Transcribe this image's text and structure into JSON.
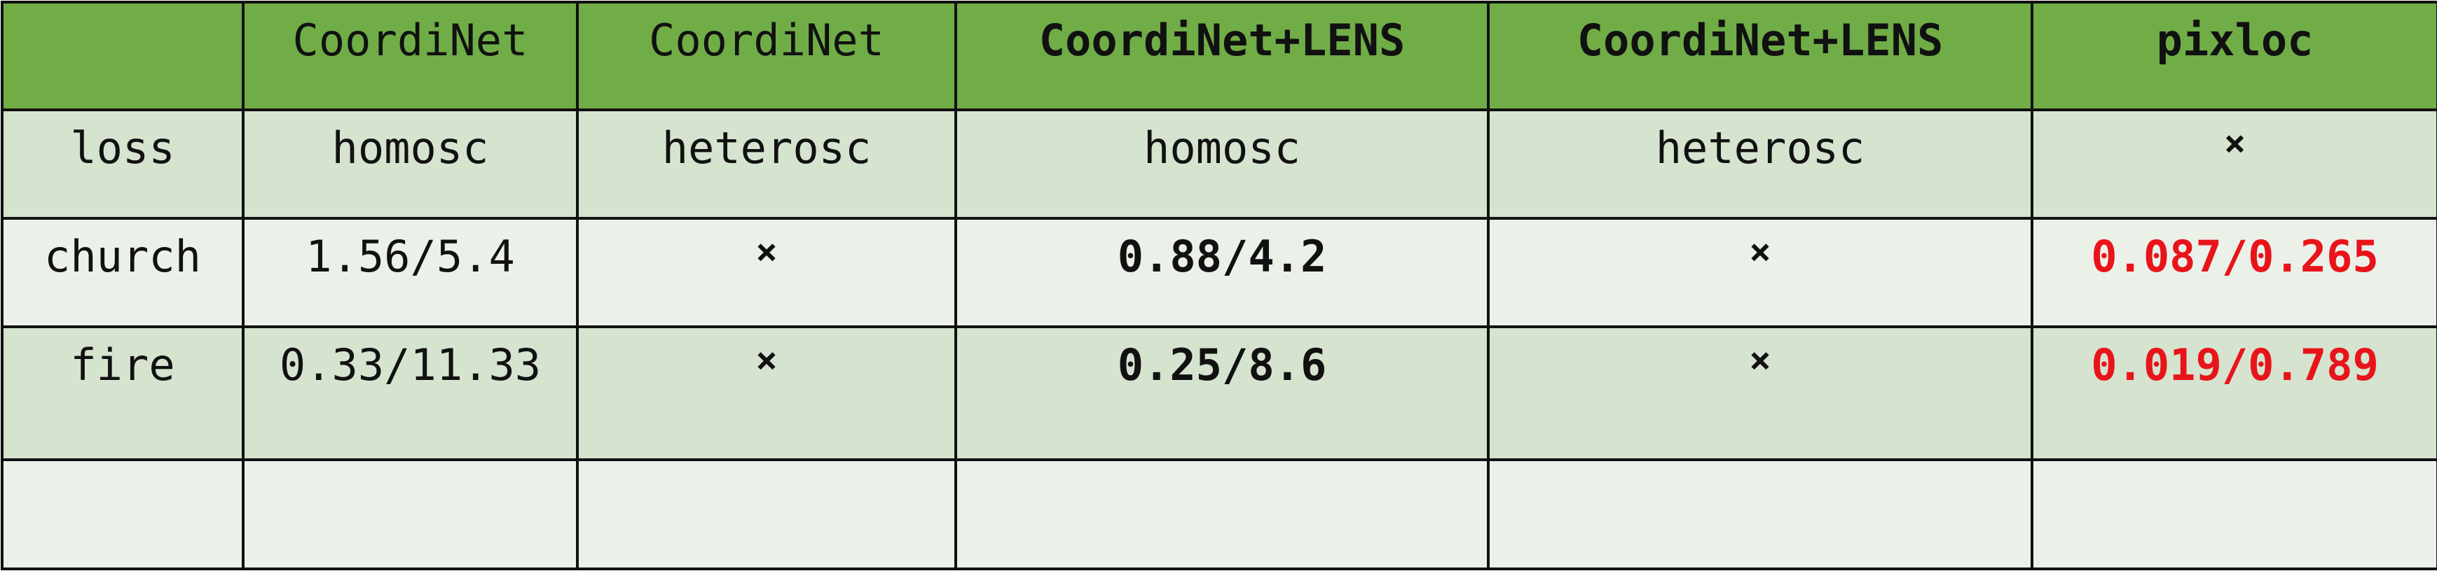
{
  "header": [
    "",
    "CoordiNet",
    "CoordiNet",
    "CoordiNet+LENS",
    "CoordiNet+LENS",
    "pixloc"
  ],
  "rows": [
    [
      "loss",
      "homosc",
      "heterosc",
      "homosc",
      "heterosc",
      "×"
    ],
    [
      "church",
      "1.56/5.4",
      "×",
      "0.88/4.2",
      "×",
      "0.087/0.265"
    ],
    [
      "fire",
      "0.33/11.33",
      "×",
      "0.25/8.6",
      "×",
      "0.019/0.789"
    ],
    [
      "",
      "",
      "",
      "",
      "",
      ""
    ]
  ],
  "colors": {
    "header_fill": "#70ad47",
    "band_dark": "#d5e3cf",
    "band_light": "#ebf1e9",
    "best_result": "#e8141a"
  }
}
